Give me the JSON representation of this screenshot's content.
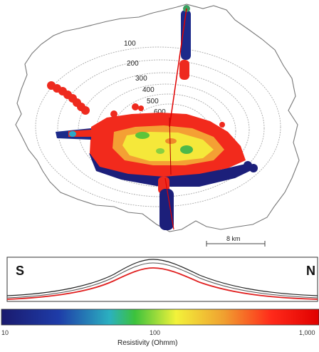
{
  "map": {
    "contour_labels": [
      "100",
      "200",
      "300",
      "400",
      "500",
      "600"
    ],
    "scale_bar_label": "8 km"
  },
  "profile": {
    "left_label": "S",
    "right_label": "N"
  },
  "colorbar": {
    "tick_labels": [
      "10",
      "100",
      "1,000"
    ],
    "title": "Resistivity (Ohmm)",
    "scale": "log",
    "colors": [
      "#1a1a6e",
      "#1e3ca8",
      "#2bb0c0",
      "#3cc23c",
      "#f2f23a",
      "#f0a030",
      "#ff2a1a",
      "#e00000"
    ]
  }
}
